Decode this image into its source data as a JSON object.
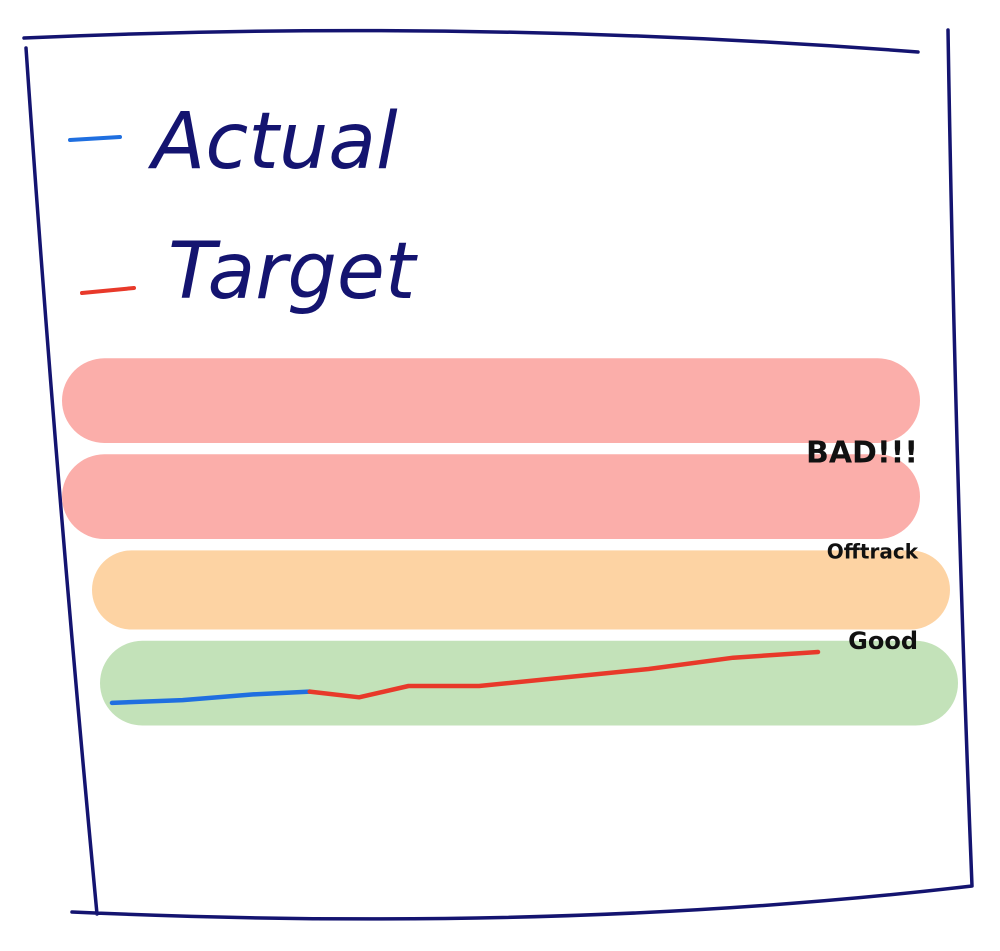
{
  "colors": {
    "frame": "#141470",
    "actual": "#1f6fe0",
    "target": "#e8392a",
    "band_bad": "#fbaeaa",
    "band_offtrack": "#fdd3a3",
    "band_good": "#c3e2b9"
  },
  "chart_data": {
    "type": "line",
    "title": "",
    "xlabel": "",
    "ylabel": "",
    "grid": false,
    "legend_position": "top-left",
    "xlim": [
      0,
      100
    ],
    "ylim": [
      0,
      100
    ],
    "bands": [
      {
        "key": "bad_upper",
        "label": "",
        "color": "#fbaeaa",
        "y_range": [
          80,
          95
        ]
      },
      {
        "key": "bad",
        "label": "BAD!!!",
        "color": "#fbaeaa",
        "y_range": [
          63,
          78
        ]
      },
      {
        "key": "offtrack",
        "label": "Offtrack",
        "color": "#fdd3a3",
        "y_range": [
          47,
          61
        ]
      },
      {
        "key": "good",
        "label": "Good",
        "color": "#c3e2b9",
        "y_range": [
          30,
          45
        ]
      }
    ],
    "series": [
      {
        "name": "Actual",
        "color": "#1f6fe0",
        "points": [
          [
            0,
            34
          ],
          [
            10,
            34.5
          ],
          [
            20,
            35.5
          ],
          [
            28,
            36
          ]
        ]
      },
      {
        "name": "Target",
        "color": "#e8392a",
        "points": [
          [
            28,
            36
          ],
          [
            35,
            35
          ],
          [
            42,
            37
          ],
          [
            52,
            37
          ],
          [
            64,
            38.5
          ],
          [
            76,
            40
          ],
          [
            88,
            42
          ],
          [
            100,
            43
          ]
        ]
      }
    ]
  }
}
